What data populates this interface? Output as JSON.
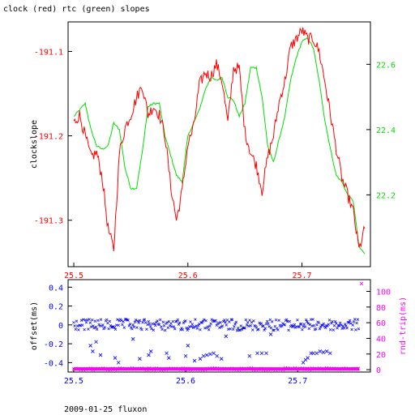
{
  "figure": {
    "title": "clock (red) rtc (green) slopes",
    "footer": "2009-01-25 fluxon"
  },
  "colors": {
    "clock": "#ff0000",
    "rtc": "#00dd00",
    "offset": "#0000ff",
    "roundtrip": "#ff00ff",
    "axes": "#000000"
  },
  "chart_data": [
    {
      "type": "line",
      "ylabel": "clockslope",
      "y2label": "",
      "xlim": [
        25.495,
        25.76
      ],
      "ylim": [
        -191.355,
        -191.065
      ],
      "y2lim": [
        21.98,
        22.73
      ],
      "xticks": [
        "25.5",
        "25.6",
        "25.7"
      ],
      "yticks": [
        "-191.1",
        "-191.2",
        "-191.3"
      ],
      "y2ticks": [
        "22.6",
        "22.4",
        "22.2"
      ],
      "series": [
        {
          "name": "clock",
          "axis": "left",
          "x": [
            25.5,
            25.505,
            25.51,
            25.515,
            25.52,
            25.525,
            25.53,
            25.535,
            25.54,
            25.545,
            25.55,
            25.555,
            25.56,
            25.565,
            25.57,
            25.575,
            25.58,
            25.585,
            25.59,
            25.595,
            25.6,
            25.605,
            25.61,
            25.615,
            25.62,
            25.625,
            25.63,
            25.635,
            25.64,
            25.645,
            25.65,
            25.655,
            25.66,
            25.665,
            25.67,
            25.675,
            25.68,
            25.685,
            25.69,
            25.695,
            25.7,
            25.705,
            25.71,
            25.715,
            25.72,
            25.725,
            25.73,
            25.735,
            25.74,
            25.745,
            25.75,
            25.755
          ],
          "y": [
            -191.185,
            -191.175,
            -191.2,
            -191.225,
            -191.22,
            -191.25,
            -191.31,
            -191.335,
            -191.22,
            -191.19,
            -191.175,
            -191.155,
            -191.14,
            -191.175,
            -191.165,
            -191.175,
            -191.2,
            -191.26,
            -191.3,
            -191.265,
            -191.21,
            -191.19,
            -191.14,
            -191.125,
            -191.13,
            -191.115,
            -191.135,
            -191.185,
            -191.12,
            -191.12,
            -191.195,
            -191.22,
            -191.235,
            -191.265,
            -191.225,
            -191.2,
            -191.16,
            -191.135,
            -191.095,
            -191.085,
            -191.075,
            -191.085,
            -191.085,
            -191.1,
            -191.135,
            -191.175,
            -191.215,
            -191.25,
            -191.27,
            -191.29,
            -191.335,
            -191.31
          ]
        },
        {
          "name": "rtc",
          "axis": "right",
          "x": [
            25.5,
            25.505,
            25.51,
            25.515,
            25.52,
            25.525,
            25.53,
            25.535,
            25.54,
            25.545,
            25.55,
            25.555,
            25.56,
            25.565,
            25.57,
            25.575,
            25.58,
            25.585,
            25.59,
            25.595,
            25.6,
            25.605,
            25.61,
            25.615,
            25.62,
            25.625,
            25.63,
            25.635,
            25.64,
            25.645,
            25.65,
            25.655,
            25.66,
            25.665,
            25.67,
            25.675,
            25.68,
            25.685,
            25.69,
            25.695,
            25.7,
            25.705,
            25.71,
            25.715,
            25.72,
            25.725,
            25.73,
            25.735,
            25.74,
            25.745,
            25.75,
            25.755
          ],
          "y": [
            22.44,
            22.46,
            22.48,
            22.4,
            22.35,
            22.34,
            22.35,
            22.42,
            22.4,
            22.28,
            22.22,
            22.22,
            22.33,
            22.47,
            22.48,
            22.48,
            22.38,
            22.32,
            22.26,
            22.24,
            22.38,
            22.42,
            22.46,
            22.52,
            22.56,
            22.55,
            22.56,
            22.5,
            22.49,
            22.44,
            22.48,
            22.59,
            22.59,
            22.5,
            22.35,
            22.3,
            22.37,
            22.44,
            22.55,
            22.62,
            22.67,
            22.68,
            22.65,
            22.55,
            22.43,
            22.34,
            22.26,
            22.24,
            22.2,
            22.18,
            22.04,
            22.02
          ]
        }
      ]
    },
    {
      "type": "scatter",
      "ylabel": "offset(ms)",
      "y2label": "rnd-trip(ms)",
      "xlim": [
        25.495,
        25.765
      ],
      "ylim": [
        -0.5,
        0.48
      ],
      "y2lim": [
        -3,
        115
      ],
      "xticks": [
        "25.5",
        "25.6",
        "25.7"
      ],
      "yticks": [
        "0.4",
        "0.2",
        "0",
        "-0.2",
        "-0.4"
      ],
      "y2ticks": [
        "100",
        "80",
        "60",
        "40",
        "20",
        "0"
      ],
      "series": [
        {
          "name": "offset",
          "axis": "left",
          "band_center": 0.0,
          "band_halfwidth": 0.06,
          "outliers_x": [
            25.515,
            25.517,
            25.52,
            25.524,
            25.537,
            25.54,
            25.553,
            25.559,
            25.567,
            25.569,
            25.583,
            25.585,
            25.6,
            25.602,
            25.608,
            25.613,
            25.616,
            25.619,
            25.622,
            25.625,
            25.628,
            25.632,
            25.636,
            25.657,
            25.664,
            25.668,
            25.672,
            25.676,
            25.705,
            25.707,
            25.709,
            25.712,
            25.714,
            25.717,
            25.72,
            25.723,
            25.726,
            25.729
          ],
          "outliers_y": [
            -0.22,
            -0.28,
            -0.18,
            -0.32,
            -0.35,
            -0.4,
            -0.15,
            -0.36,
            -0.32,
            -0.28,
            -0.3,
            -0.35,
            -0.33,
            -0.22,
            -0.38,
            -0.36,
            -0.33,
            -0.32,
            -0.31,
            -0.3,
            -0.33,
            -0.36,
            -0.12,
            -0.33,
            -0.3,
            -0.3,
            -0.3,
            -0.1,
            -0.4,
            -0.37,
            -0.35,
            -0.3,
            -0.3,
            -0.3,
            -0.28,
            -0.29,
            -0.28,
            -0.3
          ]
        },
        {
          "name": "round-trip",
          "axis": "right",
          "baseline": 1,
          "spikes_x": [
            25.757
          ],
          "spikes_y": [
            110
          ]
        }
      ]
    }
  ]
}
